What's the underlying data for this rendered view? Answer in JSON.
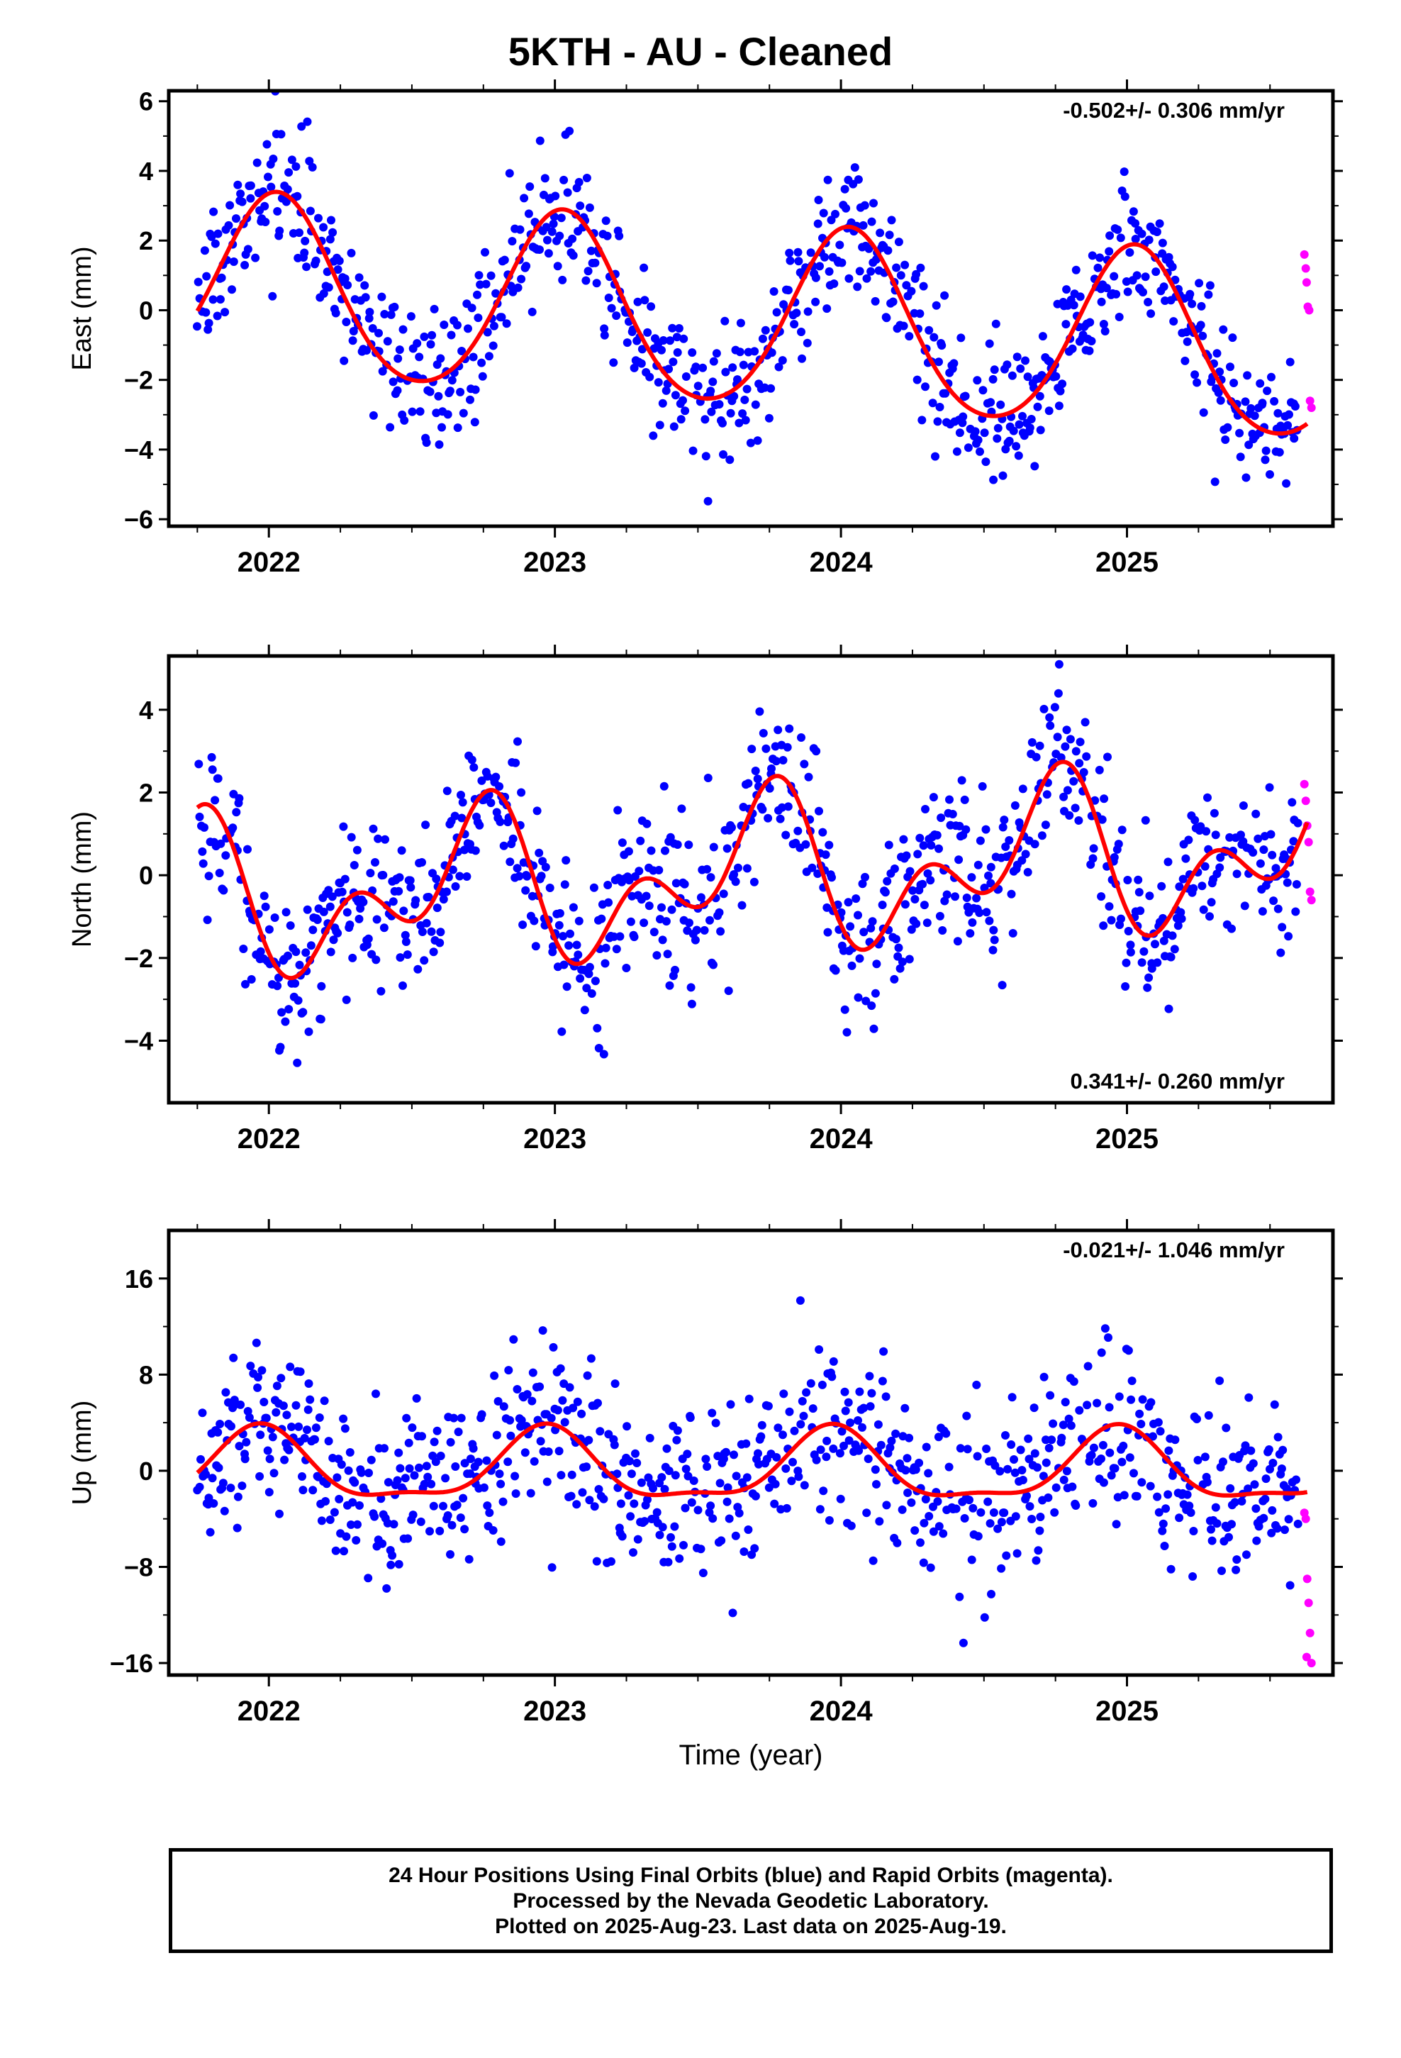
{
  "title": "5KTH  - AU - Cleaned",
  "footer": {
    "line1": "24 Hour Positions Using Final Orbits (blue) and Rapid Orbits (magenta).",
    "line2": "Processed by the Nevada Geodetic Laboratory.",
    "line3": "Plotted on 2025-Aug-23. Last data on 2025-Aug-19."
  },
  "colors": {
    "final_orbits": "#0000ff",
    "rapid_orbits": "#ff00ff",
    "model_fit": "#ff0000"
  },
  "chart_data": [
    {
      "type": "scatter",
      "id": "east",
      "ylabel": "East (mm)",
      "xlabel": "",
      "xlim": [
        2021.65,
        2025.72
      ],
      "ylim": [
        -6.2,
        6.3
      ],
      "yticks": [
        -6,
        -4,
        -2,
        0,
        2,
        4,
        6
      ],
      "ytick_labels": [
        "−6",
        "−4",
        "−2",
        "0",
        "2",
        "4",
        "6"
      ],
      "xticks": [
        2022,
        2023,
        2024,
        2025
      ],
      "xtick_labels": [
        "2022",
        "2023",
        "2024",
        "2025"
      ],
      "rate_label": "-0.502+/- 0.306 mm/yr",
      "rate_position": "top-right",
      "model": {
        "offset": -0.3,
        "trend": -0.502,
        "annual_cos": 2.55,
        "annual_sin": 0.45,
        "semiannual_cos": 0.25,
        "semiannual_sin": 0.1,
        "ref_epoch": 2023.7
      },
      "scatter_sd": 1.0,
      "rapid_points": [
        [
          2025.62,
          1.6
        ],
        [
          2025.625,
          1.2
        ],
        [
          2025.628,
          0.8
        ],
        [
          2025.632,
          0.1
        ],
        [
          2025.637,
          0.0
        ],
        [
          2025.64,
          -2.6
        ],
        [
          2025.645,
          -2.8
        ]
      ],
      "series": [
        {
          "name": "Final Orbits",
          "color": "#0000ff",
          "x_range": [
            2021.75,
            2025.6
          ],
          "sample_interval_days": 1.5
        },
        {
          "name": "Model fit",
          "color": "#ff0000",
          "x_range": [
            2021.75,
            2025.63
          ]
        }
      ]
    },
    {
      "type": "scatter",
      "id": "north",
      "ylabel": "North (mm)",
      "xlabel": "",
      "xlim": [
        2021.65,
        2025.72
      ],
      "ylim": [
        -5.5,
        5.3
      ],
      "yticks": [
        -4,
        -2,
        0,
        2,
        4
      ],
      "ytick_labels": [
        "−4",
        "−2",
        "0",
        "2",
        "4"
      ],
      "xticks": [
        2022,
        2023,
        2024,
        2025
      ],
      "xtick_labels": [
        "2022",
        "2023",
        "2024",
        "2025"
      ],
      "rate_label": "0.341+/- 0.260 mm/yr",
      "rate_position": "bottom-right",
      "model": {
        "offset": 0.0,
        "trend": 0.341,
        "annual_cos": -0.3,
        "annual_sin": -1.3,
        "semiannual_cos": -1.0,
        "semiannual_sin": -0.6,
        "ref_epoch": 2023.7
      },
      "scatter_sd": 0.95,
      "rapid_points": [
        [
          2025.62,
          2.2
        ],
        [
          2025.625,
          1.8
        ],
        [
          2025.63,
          1.2
        ],
        [
          2025.635,
          0.8
        ],
        [
          2025.64,
          -0.4
        ],
        [
          2025.645,
          -0.6
        ]
      ],
      "series": [
        {
          "name": "Final Orbits",
          "color": "#0000ff",
          "x_range": [
            2021.75,
            2025.6
          ],
          "sample_interval_days": 1.5
        },
        {
          "name": "Model fit",
          "color": "#ff0000",
          "x_range": [
            2021.75,
            2025.63
          ]
        }
      ]
    },
    {
      "type": "scatter",
      "id": "up",
      "ylabel": "Up (mm)",
      "xlabel": "Time (year)",
      "xlim": [
        2021.65,
        2025.72
      ],
      "ylim": [
        -17,
        20
      ],
      "yticks": [
        -16,
        -8,
        0,
        8,
        16
      ],
      "ytick_labels": [
        "−16",
        "−8",
        "0",
        "8",
        "16"
      ],
      "xticks": [
        2022,
        2023,
        2024,
        2025
      ],
      "xtick_labels": [
        "2022",
        "2023",
        "2024",
        "2025"
      ],
      "rate_label": "-0.021+/- 1.046 mm/yr",
      "rate_position": "top-right",
      "model": {
        "offset": 0.1,
        "trend": -0.021,
        "annual_cos": 2.8,
        "annual_sin": -0.6,
        "semiannual_cos": 0.9,
        "semiannual_sin": -0.3,
        "ref_epoch": 2023.7
      },
      "scatter_sd": 3.6,
      "rapid_points": [
        [
          2025.62,
          -3.5
        ],
        [
          2025.625,
          -4.0
        ],
        [
          2025.63,
          -9.0
        ],
        [
          2025.635,
          -11.0
        ],
        [
          2025.64,
          -13.5
        ],
        [
          2025.645,
          -16.0
        ],
        [
          2025.628,
          -15.5
        ]
      ],
      "series": [
        {
          "name": "Final Orbits",
          "color": "#0000ff",
          "x_range": [
            2021.75,
            2025.6
          ],
          "sample_interval_days": 1.5
        },
        {
          "name": "Model fit",
          "color": "#ff0000",
          "x_range": [
            2021.75,
            2025.63
          ]
        }
      ]
    }
  ]
}
